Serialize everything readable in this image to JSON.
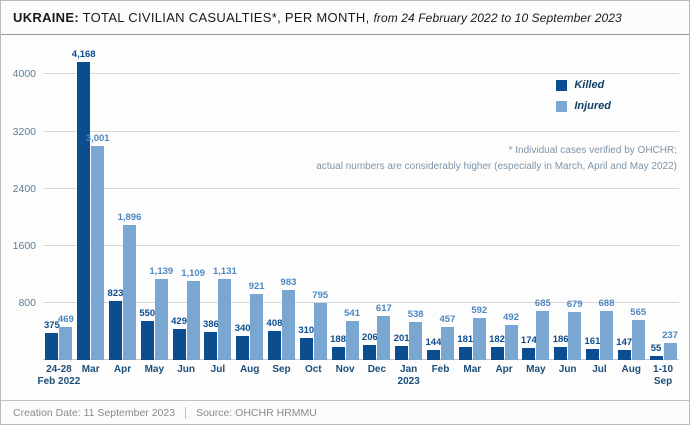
{
  "header": {
    "title_bold": "UKRAINE:",
    "title_main": "TOTAL CIVILIAN CASUALTIES*, PER MONTH,",
    "title_range": "from 24 February 2022 to 10 September 2023"
  },
  "legend": {
    "killed": "Killed",
    "injured": "Injured"
  },
  "note": {
    "line1": "* Individual cases verified by OHCHR;",
    "line2": "actual numbers are considerably higher (especially in March, April and May 2022)"
  },
  "footer": {
    "creation": "Creation Date: 11 September 2023",
    "source": "Source: OHCHR HRMMU"
  },
  "colors": {
    "killed": "#0b4d8e",
    "injured": "#79a7d2",
    "killed_label": "#0b4d8e",
    "injured_label": "#4d87c0",
    "axis_text": "#5a7e93",
    "category_text": "#1b4e79",
    "gridline": "#d9d9d9",
    "note_text": "#7e95a9"
  },
  "chart_data": {
    "type": "bar",
    "title": "UKRAINE: TOTAL CIVILIAN CASUALTIES*, PER MONTH, from 24 February 2022 to 10 September 2023",
    "categories": [
      [
        "24-28",
        "Feb 2022"
      ],
      [
        "Mar"
      ],
      [
        "Apr"
      ],
      [
        "May"
      ],
      [
        "Jun"
      ],
      [
        "Jul"
      ],
      [
        "Aug"
      ],
      [
        "Sep"
      ],
      [
        "Oct"
      ],
      [
        "Nov"
      ],
      [
        "Dec"
      ],
      [
        "Jan",
        "2023"
      ],
      [
        "Feb"
      ],
      [
        "Mar"
      ],
      [
        "Apr"
      ],
      [
        "May"
      ],
      [
        "Jun"
      ],
      [
        "Jul"
      ],
      [
        "Aug"
      ],
      [
        "1-10",
        "Sep"
      ]
    ],
    "series": [
      {
        "name": "Killed",
        "values": [
          375,
          4168,
          823,
          550,
          429,
          386,
          340,
          408,
          310,
          188,
          206,
          201,
          144,
          181,
          182,
          174,
          186,
          161,
          147,
          55
        ]
      },
      {
        "name": "Injured",
        "values": [
          469,
          3001,
          1896,
          1139,
          1109,
          1131,
          921,
          983,
          795,
          541,
          617,
          538,
          457,
          592,
          492,
          685,
          679,
          688,
          565,
          237
        ]
      }
    ],
    "y_ticks": [
      800,
      1600,
      2400,
      3200,
      4000
    ],
    "ylim": [
      0,
      4300
    ],
    "grid": true,
    "legend_position": "top-right"
  }
}
